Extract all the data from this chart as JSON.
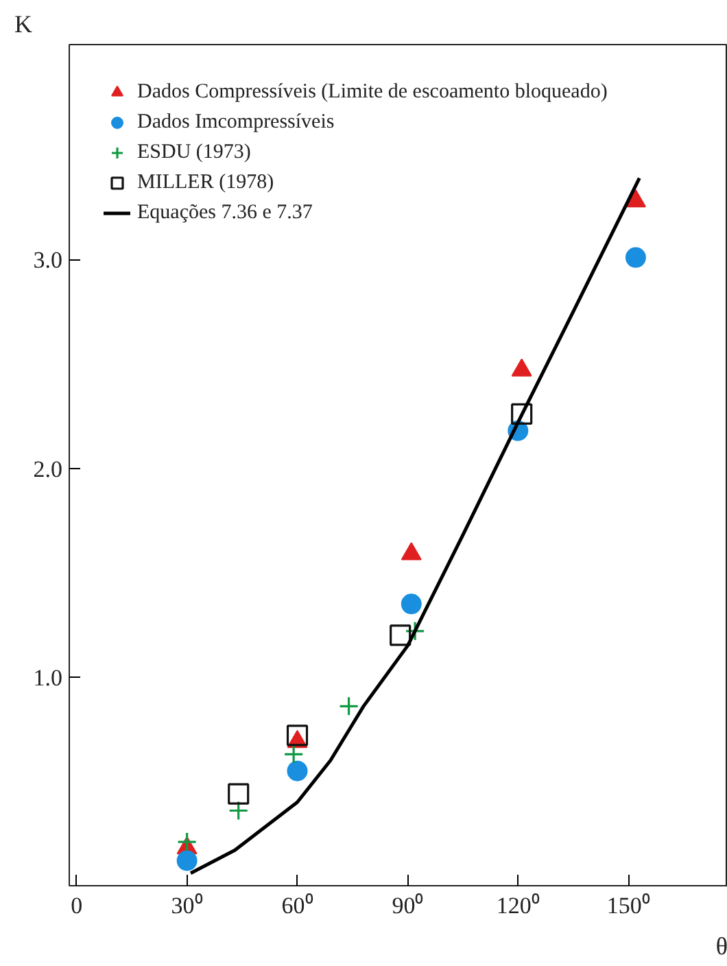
{
  "chart_data": {
    "type": "scatter",
    "xlabel": "θ",
    "ylabel": "K",
    "xlim": [
      -2,
      177
    ],
    "ylim": [
      0,
      4.03
    ],
    "xticks": [
      {
        "value": 0,
        "label": "0"
      },
      {
        "value": 30,
        "label": "30⁰"
      },
      {
        "value": 60,
        "label": "60⁰"
      },
      {
        "value": 90,
        "label": "90⁰"
      },
      {
        "value": 120,
        "label": "120⁰"
      },
      {
        "value": 150,
        "label": "150⁰"
      }
    ],
    "yticks": [
      {
        "value": 1,
        "label": "1.0"
      },
      {
        "value": 2,
        "label": "2.0"
      },
      {
        "value": 3,
        "label": "3.0"
      }
    ],
    "grid": false,
    "legend": "top left",
    "series": [
      {
        "name": "Dados Compressíveis (Limite de escoamento bloqueado)",
        "color": "#e02020",
        "marker": "triangle",
        "x": [
          30,
          60,
          91,
          121,
          152
        ],
        "values": [
          0.18,
          0.69,
          1.59,
          2.47,
          3.28
        ]
      },
      {
        "name": "Dados Imcompressíveis",
        "color": "#1a8fe0",
        "marker": "circle",
        "x": [
          30,
          60,
          91,
          120,
          152
        ],
        "values": [
          0.12,
          0.55,
          1.35,
          2.18,
          3.01
        ]
      },
      {
        "name": "ESDU (1973)",
        "color": "#119944",
        "marker": "cross",
        "x": [
          30,
          44,
          59,
          74,
          92
        ],
        "values": [
          0.21,
          0.36,
          0.63,
          0.86,
          1.22
        ]
      },
      {
        "name": "MILLER (1978)",
        "color": "#111111",
        "marker": "square",
        "x": [
          44,
          60,
          88,
          121
        ],
        "values": [
          0.44,
          0.72,
          1.2,
          2.26
        ]
      },
      {
        "name": "Equações 7.36 e 7.37",
        "type": "line",
        "color": "#000000",
        "x": [
          31,
          43,
          60,
          69,
          78,
          90,
          105,
          120,
          135,
          153
        ],
        "values": [
          0.06,
          0.17,
          0.4,
          0.6,
          0.86,
          1.15,
          1.68,
          2.22,
          2.75,
          3.39
        ]
      }
    ]
  }
}
